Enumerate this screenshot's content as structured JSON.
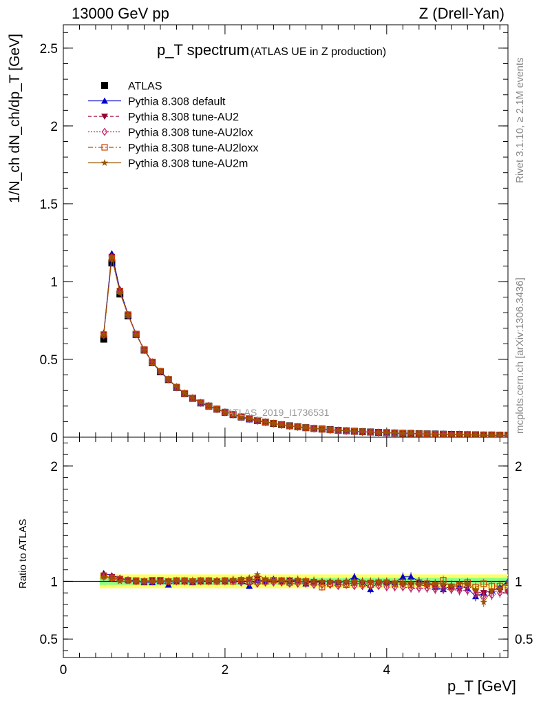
{
  "header": {
    "energy_label": "13000 GeV pp",
    "process_label": "Z (Drell-Yan)"
  },
  "side_text": {
    "rivet": "Rivet 3.1.10, ≥ 2.1M events",
    "source": "mcplots.cern.ch [arXiv:1306.3436]"
  },
  "colors": {
    "data": "#000000",
    "default": "#0000cc",
    "au2": "#990033",
    "au2lox": "#bb2266",
    "au2loxx": "#cc4400",
    "au2m": "#995500",
    "band_inner": "#88ff88",
    "band_outer": "#ffff66"
  },
  "chart_data": [
    {
      "type": "scatter",
      "title": "p_T spectrum",
      "subtitle": "(ATLAS UE in Z production)",
      "watermark": "ATLAS_2019_I1736531",
      "xlabel": "p_T [GeV]",
      "ylabel": "1/N_ch dN_ch/dp_T [GeV]",
      "xlim": [
        0,
        5.5
      ],
      "ylim": [
        0,
        2.65
      ],
      "yticks": [
        0,
        0.5,
        1,
        1.5,
        2,
        2.5
      ],
      "xticks": [
        0,
        2,
        4
      ],
      "legend_position": "top-left",
      "x": [
        0.5,
        0.6,
        0.7,
        0.8,
        0.9,
        1.0,
        1.1,
        1.2,
        1.3,
        1.4,
        1.5,
        1.6,
        1.7,
        1.8,
        1.9,
        2.0,
        2.1,
        2.2,
        2.3,
        2.4,
        2.5,
        2.6,
        2.7,
        2.8,
        2.9,
        3.0,
        3.1,
        3.2,
        3.3,
        3.4,
        3.5,
        3.6,
        3.7,
        3.8,
        3.9,
        4.0,
        4.1,
        4.2,
        4.3,
        4.4,
        4.5,
        4.6,
        4.7,
        4.8,
        4.9,
        5.0,
        5.1,
        5.2,
        5.3,
        5.4,
        5.5
      ],
      "series": [
        {
          "name": "ATLAS",
          "marker": "square",
          "color_key": "data",
          "values": [
            0.63,
            1.12,
            0.92,
            0.78,
            0.66,
            0.56,
            0.48,
            0.42,
            0.37,
            0.32,
            0.28,
            0.25,
            0.22,
            0.2,
            0.18,
            0.16,
            0.145,
            0.13,
            0.118,
            0.107,
            0.097,
            0.088,
            0.08,
            0.073,
            0.067,
            0.061,
            0.056,
            0.052,
            0.048,
            0.044,
            0.041,
            0.038,
            0.035,
            0.033,
            0.031,
            0.029,
            0.027,
            0.025,
            0.024,
            0.022,
            0.021,
            0.02,
            0.019,
            0.018,
            0.017,
            0.016,
            0.015,
            0.014,
            0.014,
            0.013,
            0.013
          ]
        },
        {
          "name": "Pythia 8.308 default",
          "marker": "triangle-up",
          "line": "solid",
          "color_key": "default",
          "values": [
            0.67,
            1.18,
            0.95,
            0.79,
            0.665,
            0.56,
            0.48,
            0.42,
            0.37,
            0.32,
            0.28,
            0.25,
            0.22,
            0.2,
            0.18,
            0.16,
            0.145,
            0.13,
            0.113,
            0.107,
            0.097,
            0.088,
            0.08,
            0.073,
            0.067,
            0.06,
            0.056,
            0.052,
            0.048,
            0.044,
            0.041,
            0.039,
            0.035,
            0.031,
            0.031,
            0.029,
            0.027,
            0.026,
            0.025,
            0.022,
            0.021,
            0.019,
            0.018,
            0.017,
            0.016,
            0.015,
            0.013,
            0.013,
            0.013,
            0.012,
            0.013
          ]
        },
        {
          "name": "Pythia 8.308 tune-AU2",
          "marker": "triangle-down",
          "line": "dashed",
          "color_key": "au2",
          "values": [
            0.66,
            1.16,
            0.94,
            0.79,
            0.665,
            0.565,
            0.485,
            0.425,
            0.372,
            0.323,
            0.283,
            0.252,
            0.222,
            0.202,
            0.181,
            0.161,
            0.146,
            0.131,
            0.119,
            0.109,
            0.098,
            0.089,
            0.081,
            0.074,
            0.067,
            0.061,
            0.056,
            0.052,
            0.048,
            0.044,
            0.041,
            0.038,
            0.035,
            0.033,
            0.031,
            0.029,
            0.027,
            0.025,
            0.024,
            0.022,
            0.021,
            0.019,
            0.018,
            0.017,
            0.016,
            0.016,
            0.014,
            0.013,
            0.013,
            0.012,
            0.012
          ]
        },
        {
          "name": "Pythia 8.308 tune-AU2lox",
          "marker": "diamond-open",
          "line": "dotted",
          "color_key": "au2lox",
          "values": [
            0.655,
            1.15,
            0.935,
            0.785,
            0.66,
            0.56,
            0.482,
            0.422,
            0.371,
            0.321,
            0.281,
            0.251,
            0.221,
            0.201,
            0.18,
            0.16,
            0.145,
            0.129,
            0.117,
            0.105,
            0.096,
            0.087,
            0.079,
            0.071,
            0.066,
            0.06,
            0.055,
            0.051,
            0.047,
            0.043,
            0.04,
            0.037,
            0.034,
            0.032,
            0.03,
            0.028,
            0.026,
            0.024,
            0.023,
            0.021,
            0.02,
            0.019,
            0.018,
            0.017,
            0.016,
            0.015,
            0.013,
            0.012,
            0.012,
            0.012,
            0.012
          ]
        },
        {
          "name": "Pythia 8.308 tune-AU2loxx",
          "marker": "square-open",
          "line": "dashdot",
          "color_key": "au2loxx",
          "values": [
            0.66,
            1.15,
            0.94,
            0.787,
            0.662,
            0.562,
            0.484,
            0.424,
            0.372,
            0.322,
            0.282,
            0.251,
            0.221,
            0.201,
            0.18,
            0.161,
            0.146,
            0.131,
            0.119,
            0.108,
            0.098,
            0.089,
            0.08,
            0.072,
            0.067,
            0.061,
            0.056,
            0.051,
            0.047,
            0.043,
            0.041,
            0.038,
            0.035,
            0.032,
            0.031,
            0.029,
            0.027,
            0.025,
            0.023,
            0.022,
            0.021,
            0.019,
            0.019,
            0.017,
            0.016,
            0.016,
            0.014,
            0.014,
            0.013,
            0.012,
            0.012
          ]
        },
        {
          "name": "Pythia 8.308 tune-AU2m",
          "marker": "star",
          "line": "solid",
          "color_key": "au2m",
          "values": [
            0.66,
            1.16,
            0.93,
            0.785,
            0.66,
            0.56,
            0.483,
            0.423,
            0.372,
            0.324,
            0.283,
            0.252,
            0.223,
            0.202,
            0.181,
            0.161,
            0.147,
            0.132,
            0.121,
            0.111,
            0.098,
            0.089,
            0.081,
            0.074,
            0.068,
            0.062,
            0.057,
            0.052,
            0.048,
            0.044,
            0.041,
            0.038,
            0.035,
            0.033,
            0.031,
            0.029,
            0.027,
            0.025,
            0.024,
            0.022,
            0.021,
            0.019,
            0.019,
            0.018,
            0.017,
            0.016,
            0.014,
            0.013,
            0.013,
            0.012,
            0.013
          ]
        }
      ]
    },
    {
      "type": "scatter",
      "ylabel": "Ratio to ATLAS",
      "xlabel": "p_T [GeV]",
      "xlim": [
        0,
        5.5
      ],
      "ylim": [
        0.34,
        2.25
      ],
      "yticks": [
        0.5,
        1,
        2
      ],
      "reference_line": 1,
      "bands": {
        "inner": 0.03,
        "outer": 0.06
      },
      "x": [
        0.5,
        0.6,
        0.7,
        0.8,
        0.9,
        1.0,
        1.1,
        1.2,
        1.3,
        1.4,
        1.5,
        1.6,
        1.7,
        1.8,
        1.9,
        2.0,
        2.1,
        2.2,
        2.3,
        2.4,
        2.5,
        2.6,
        2.7,
        2.8,
        2.9,
        3.0,
        3.1,
        3.2,
        3.3,
        3.4,
        3.5,
        3.6,
        3.7,
        3.8,
        3.9,
        4.0,
        4.1,
        4.2,
        4.3,
        4.4,
        4.5,
        4.6,
        4.7,
        4.8,
        4.9,
        5.0,
        5.1,
        5.2,
        5.3,
        5.4,
        5.5
      ],
      "series": [
        {
          "name": "Pythia 8.308 default",
          "color_key": "default",
          "marker": "triangle-up",
          "values": [
            1.07,
            1.05,
            1.03,
            1.01,
            1.0,
            0.99,
            0.99,
            1.0,
            0.97,
            1.0,
            1.0,
            0.99,
            1.0,
            1.0,
            1.01,
            1.0,
            1.01,
            1.0,
            0.96,
            1.01,
            1.0,
            1.02,
            1.0,
            1.0,
            1.01,
            0.98,
            1.0,
            1.0,
            1.0,
            0.99,
            1.0,
            1.04,
            1.0,
            0.93,
            1.0,
            0.99,
            0.99,
            1.04,
            1.04,
            1.0,
            0.99,
            0.95,
            0.93,
            0.96,
            0.96,
            0.94,
            0.87,
            0.9,
            0.92,
            0.95,
            1.0
          ]
        },
        {
          "name": "Pythia 8.308 tune-AU2",
          "color_key": "au2",
          "marker": "triangle-down",
          "values": [
            1.05,
            1.04,
            1.02,
            1.01,
            1.01,
            1.0,
            1.01,
            1.01,
            1.0,
            1.01,
            1.01,
            1.0,
            1.01,
            1.01,
            1.0,
            1.01,
            1.0,
            1.01,
            1.01,
            1.02,
            1.01,
            1.0,
            1.01,
            1.01,
            1.0,
            1.0,
            0.99,
            0.99,
            0.99,
            0.99,
            0.99,
            0.98,
            0.98,
            0.99,
            0.98,
            0.98,
            0.98,
            0.97,
            0.97,
            0.97,
            0.96,
            0.95,
            0.95,
            0.94,
            0.93,
            0.97,
            0.91,
            0.9,
            0.91,
            0.92,
            0.91
          ]
        },
        {
          "name": "Pythia 8.308 tune-AU2lox",
          "color_key": "au2lox",
          "marker": "diamond-open",
          "values": [
            1.04,
            1.03,
            1.02,
            1.01,
            1.0,
            1.0,
            1.0,
            1.0,
            1.0,
            1.0,
            1.0,
            1.0,
            1.0,
            1.0,
            1.0,
            1.0,
            1.0,
            0.99,
            0.99,
            0.98,
            0.99,
            0.99,
            0.99,
            0.98,
            0.98,
            0.98,
            0.97,
            0.97,
            0.97,
            0.96,
            0.97,
            0.96,
            0.96,
            0.96,
            0.96,
            0.95,
            0.95,
            0.95,
            0.94,
            0.94,
            0.94,
            0.93,
            0.93,
            0.93,
            0.92,
            0.92,
            0.89,
            0.87,
            0.88,
            0.9,
            0.91
          ]
        },
        {
          "name": "Pythia 8.308 tune-AU2loxx",
          "color_key": "au2loxx",
          "marker": "square-open",
          "values": [
            1.05,
            1.03,
            1.02,
            1.01,
            1.0,
            1.0,
            1.01,
            1.01,
            1.0,
            1.0,
            1.0,
            1.0,
            1.0,
            1.0,
            1.0,
            1.0,
            1.0,
            1.01,
            1.0,
            1.0,
            1.0,
            1.01,
            1.0,
            0.99,
            1.0,
            1.0,
            0.99,
            0.95,
            0.98,
            0.98,
            0.97,
            0.99,
            0.98,
            0.97,
            0.99,
            0.99,
            0.98,
            0.99,
            0.97,
            0.99,
            0.98,
            0.97,
            1.01,
            0.95,
            0.97,
            0.99,
            0.95,
            0.98,
            0.96,
            0.96,
            0.94
          ]
        },
        {
          "name": "Pythia 8.308 tune-AU2m",
          "color_key": "au2m",
          "marker": "star",
          "values": [
            1.04,
            1.03,
            1.0,
            1.0,
            1.0,
            1.0,
            1.0,
            1.0,
            1.0,
            1.01,
            1.01,
            1.01,
            1.01,
            1.01,
            1.0,
            1.01,
            1.02,
            1.02,
            1.03,
            1.06,
            1.02,
            1.01,
            1.01,
            1.01,
            1.02,
            1.01,
            1.01,
            1.0,
            1.0,
            1.0,
            1.0,
            1.0,
            1.0,
            1.0,
            1.0,
            1.0,
            0.99,
            0.99,
            0.99,
            0.98,
            0.98,
            0.98,
            0.98,
            0.97,
            0.98,
            0.98,
            0.93,
            0.82,
            0.92,
            0.94,
            0.99
          ]
        }
      ]
    }
  ]
}
